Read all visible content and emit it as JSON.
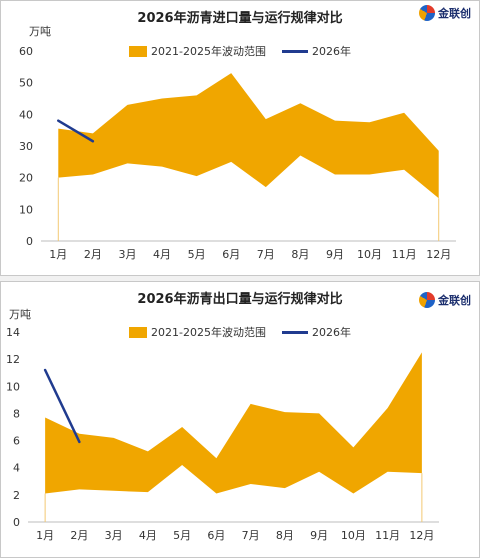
{
  "chart_data": [
    {
      "type": "area",
      "title": "2026年沥青进口量与运行规律对比",
      "ylabel": "万吨",
      "ylim": [
        0,
        60
      ],
      "yticks": [
        0,
        10,
        20,
        30,
        40,
        50,
        60
      ],
      "categories": [
        "1月",
        "2月",
        "3月",
        "4月",
        "5月",
        "6月",
        "7月",
        "8月",
        "9月",
        "10月",
        "11月",
        "12月"
      ],
      "series": [
        {
          "name": "2021-2025年波动范围",
          "kind": "range",
          "low": [
            20,
            21,
            24.5,
            23.5,
            20.5,
            25,
            17,
            27,
            21,
            21,
            22.5,
            13.5
          ],
          "high": [
            35.5,
            34,
            43,
            45,
            46,
            53,
            38.5,
            43.5,
            38,
            37.5,
            40.5,
            28.5
          ],
          "color": "#f0a600"
        },
        {
          "name": "2026年",
          "kind": "line",
          "values": [
            38,
            31.5,
            null,
            null,
            null,
            null,
            null,
            null,
            null,
            null,
            null,
            null
          ],
          "color": "#203b8f"
        }
      ],
      "legend": "top-center",
      "grid": false,
      "logo_text": "金联创"
    },
    {
      "type": "area",
      "title": "2026年沥青出口量与运行规律对比",
      "ylabel": "万吨",
      "ylim": [
        0,
        14
      ],
      "yticks": [
        0,
        2,
        4,
        6,
        8,
        10,
        12,
        14
      ],
      "categories": [
        "1月",
        "2月",
        "3月",
        "4月",
        "5月",
        "6月",
        "7月",
        "8月",
        "9月",
        "10月",
        "11月",
        "12月"
      ],
      "series": [
        {
          "name": "2021-2025年波动范围",
          "kind": "range",
          "low": [
            2.1,
            2.4,
            2.3,
            2.2,
            4.2,
            2.1,
            2.8,
            2.5,
            3.7,
            2.1,
            3.7,
            3.6
          ],
          "high": [
            7.7,
            6.5,
            6.2,
            5.2,
            7.0,
            4.7,
            8.7,
            8.1,
            8.0,
            5.5,
            8.4,
            12.5
          ],
          "color": "#f0a600"
        },
        {
          "name": "2026年",
          "kind": "line",
          "values": [
            11.2,
            5.9,
            null,
            null,
            null,
            null,
            null,
            null,
            null,
            null,
            null,
            null
          ],
          "color": "#203b8f"
        }
      ],
      "legend": "top-center",
      "grid": false,
      "logo_text": "金联创"
    }
  ]
}
